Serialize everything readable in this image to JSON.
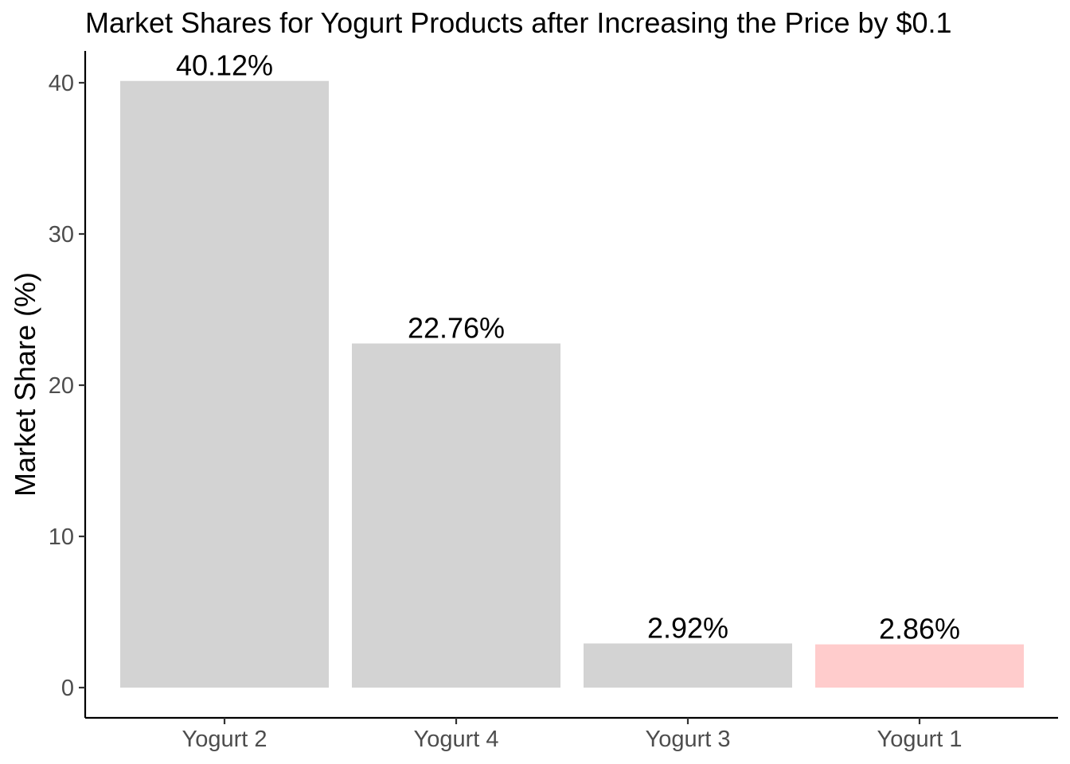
{
  "chart_data": {
    "type": "bar",
    "title": "Market Shares for Yogurt Products after Increasing the Price by $0.1",
    "xlabel": "",
    "ylabel": "Market Share (%)",
    "categories": [
      "Yogurt 2",
      "Yogurt 4",
      "Yogurt 3",
      "Yogurt 1"
    ],
    "values": [
      40.12,
      22.76,
      2.92,
      2.86
    ],
    "data_labels": [
      "40.12%",
      "22.76%",
      "2.92%",
      "2.86%"
    ],
    "colors": [
      "#d3d3d3",
      "#d3d3d3",
      "#d3d3d3",
      "#ffcccc"
    ],
    "yticks": [
      0,
      10,
      20,
      30,
      40
    ],
    "ylim": [
      -2,
      42
    ],
    "grid": false,
    "legend": "none"
  }
}
